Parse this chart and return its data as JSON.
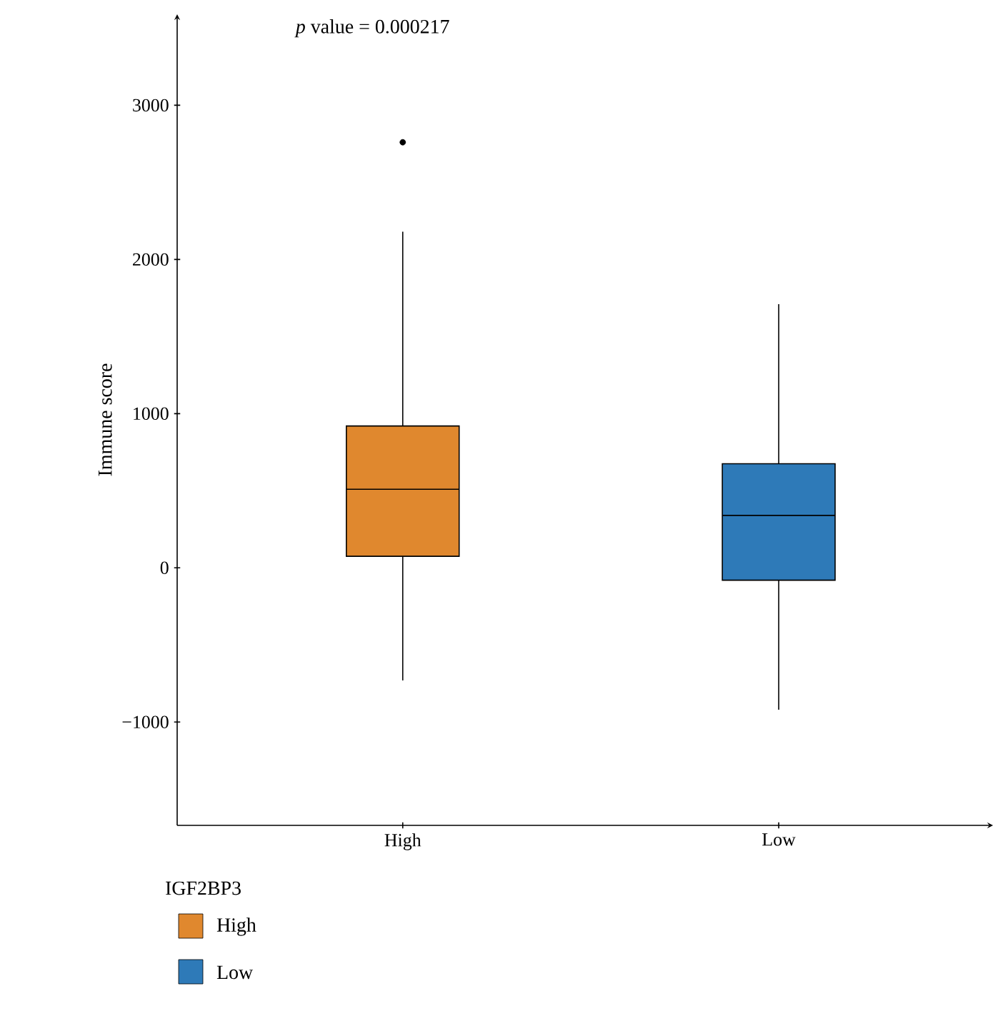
{
  "chart_data": {
    "type": "box",
    "ylabel": "Immune score",
    "legend_title": "IGF2BP3",
    "legend": "bottom",
    "annotations": [
      "*p* value = 0.000217"
    ],
    "categories": [
      "High",
      "Low"
    ],
    "ylim": [
      -1670,
      3590
    ],
    "yticks": [
      {
        "value": -1000,
        "label": "−1000"
      },
      0,
      1000,
      2000,
      3000
    ],
    "series": [
      {
        "name": "High",
        "color": "#e0882e",
        "boxes": [
          {
            "low": -730,
            "q1": 75,
            "median": 510,
            "q3": 920,
            "high": 2180,
            "outliers": [
              2760
            ]
          },
          null
        ]
      },
      {
        "name": "Low",
        "color": "#2e7ab8",
        "boxes": [
          null,
          {
            "low": -920,
            "q1": -80,
            "median": 340,
            "q3": 675,
            "high": 1710
          }
        ]
      }
    ]
  }
}
